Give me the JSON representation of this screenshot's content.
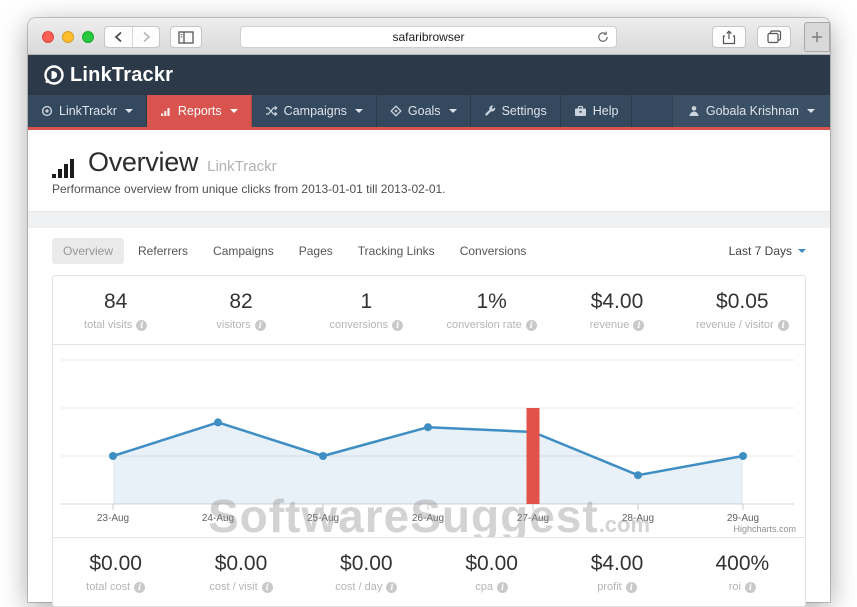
{
  "browser": {
    "url_text": "safaribrowser"
  },
  "app": {
    "brand": "LinkTrackr",
    "nav": {
      "items": [
        {
          "label": "LinkTrackr",
          "caret": true,
          "active": false
        },
        {
          "label": "Reports",
          "caret": true,
          "active": true
        },
        {
          "label": "Campaigns",
          "caret": true,
          "active": false
        },
        {
          "label": "Goals",
          "caret": true,
          "active": false
        },
        {
          "label": "Settings",
          "caret": false,
          "active": false
        },
        {
          "label": "Help",
          "caret": false,
          "active": false
        }
      ],
      "user": {
        "label": "Gobala Krishnan"
      }
    }
  },
  "page": {
    "title": "Overview",
    "title_suffix": "LinkTrackr",
    "subtitle": "Performance overview from unique clicks from 2013-01-01 till 2013-02-01.",
    "tabs": [
      {
        "label": "Overview",
        "active": true
      },
      {
        "label": "Referrers",
        "active": false
      },
      {
        "label": "Campaigns",
        "active": false
      },
      {
        "label": "Pages",
        "active": false
      },
      {
        "label": "Tracking Links",
        "active": false
      },
      {
        "label": "Conversions",
        "active": false
      }
    ],
    "date_range": "Last 7 Days"
  },
  "stats_top": [
    {
      "value": "84",
      "label": "total visits"
    },
    {
      "value": "82",
      "label": "visitors"
    },
    {
      "value": "1",
      "label": "conversions"
    },
    {
      "value": "1%",
      "label": "conversion rate"
    },
    {
      "value": "$4.00",
      "label": "revenue"
    },
    {
      "value": "$0.05",
      "label": "revenue / visitor"
    }
  ],
  "stats_bottom": [
    {
      "value": "$0.00",
      "label": "total cost"
    },
    {
      "value": "$0.00",
      "label": "cost / visit"
    },
    {
      "value": "$0.00",
      "label": "cost / day"
    },
    {
      "value": "$0.00",
      "label": "cpa"
    },
    {
      "value": "$4.00",
      "label": "profit"
    },
    {
      "value": "400%",
      "label": "roi"
    }
  ],
  "chart_data": {
    "type": "line",
    "categories": [
      "23-Aug",
      "24-Aug",
      "25-Aug",
      "26-Aug",
      "27-Aug",
      "28-Aug",
      "29-Aug"
    ],
    "series": [
      {
        "name": "visits",
        "type": "area-line",
        "axis": "y",
        "color": "#3e8ec4",
        "fill": "rgba(62,142,196,0.12)",
        "values": [
          10,
          17,
          10,
          16,
          15,
          6,
          10
        ]
      },
      {
        "name": "conversions",
        "type": "bar",
        "axis": "y2",
        "color": "#e2524b",
        "values": [
          0,
          0,
          0,
          0,
          1,
          0,
          0
        ]
      }
    ],
    "ylim": [
      0,
      30
    ],
    "y2lim": [
      0,
      1.5
    ],
    "gridlines": [
      0,
      10,
      20,
      30
    ],
    "grid": true,
    "legend": "none",
    "title": "",
    "xlabel": "",
    "ylabel": ""
  },
  "watermark": {
    "text": "SoftwareSuggest",
    "suffix": ".com"
  },
  "credit": "Highcharts.com",
  "icons": {
    "info": "i"
  }
}
